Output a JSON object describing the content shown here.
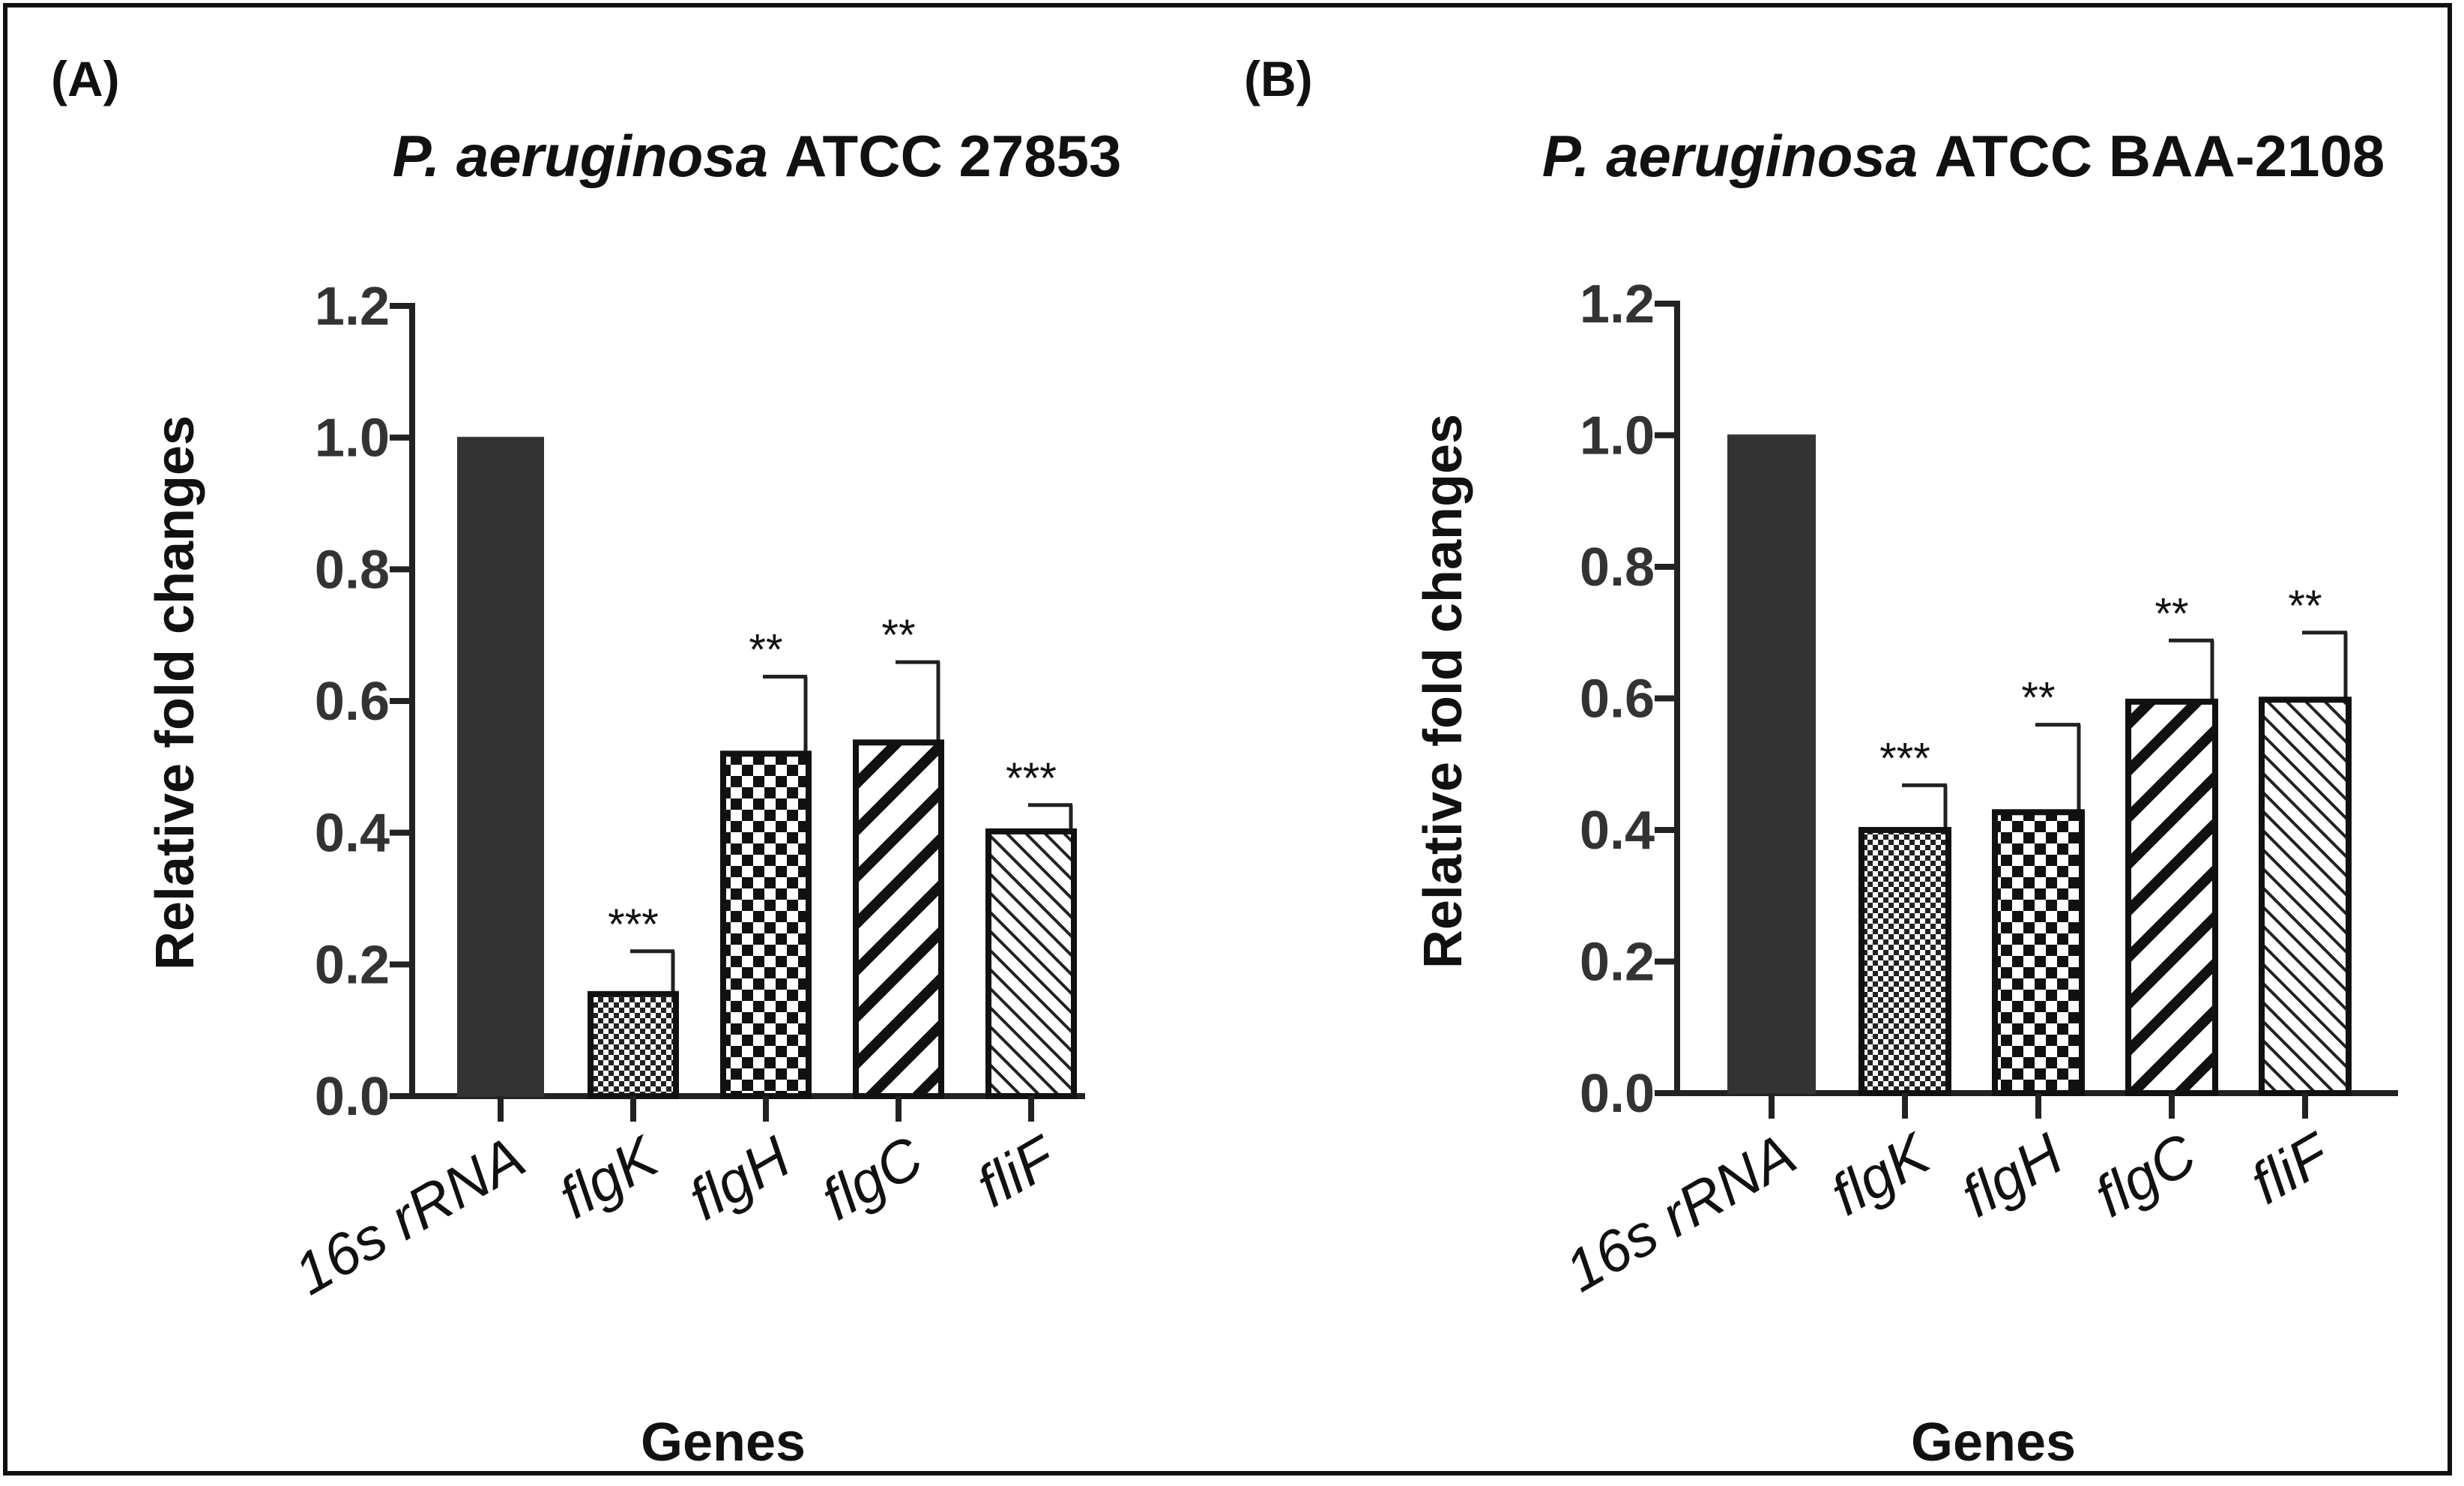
{
  "chart_data": [
    {
      "type": "bar",
      "panel": "(A)",
      "title_italic": "P. aeruginosa",
      "title_rest": "ATCC 27853",
      "xlabel": "Genes",
      "ylabel": "Relative fold changes",
      "ylim": [
        0,
        1.2
      ],
      "yticks": [
        "0.0",
        "0.2",
        "0.4",
        "0.6",
        "0.8",
        "1.0",
        "1.2"
      ],
      "categories": [
        "16s rRNA",
        "flgK",
        "flgH",
        "flgC",
        "fliF"
      ],
      "values": [
        1.0,
        0.155,
        0.52,
        0.537,
        0.402
      ],
      "errors": [
        0,
        0.065,
        0.117,
        0.122,
        0.04
      ],
      "significance": [
        "",
        "***",
        "**",
        "**",
        "***"
      ],
      "patterns": [
        "solid",
        "fine-check",
        "check",
        "wide-diag",
        "fine-diag"
      ]
    },
    {
      "type": "bar",
      "panel": "(B)",
      "title_italic": "P. aeruginosa",
      "title_rest": "ATCC BAA-2108",
      "xlabel": "Genes",
      "ylabel": "Relative fold changes",
      "ylim": [
        0,
        1.2
      ],
      "yticks": [
        "0.0",
        "0.2",
        "0.4",
        "0.6",
        "0.8",
        "1.0",
        "1.2"
      ],
      "categories": [
        "16s rRNA",
        "flgK",
        "flgH",
        "flgC",
        "fliF"
      ],
      "values": [
        1.0,
        0.4,
        0.427,
        0.595,
        0.598
      ],
      "errors": [
        0,
        0.068,
        0.133,
        0.093,
        0.102
      ],
      "significance": [
        "",
        "***",
        "**",
        "**",
        "**"
      ],
      "patterns": [
        "solid",
        "fine-check",
        "check",
        "wide-diag",
        "fine-diag"
      ]
    }
  ]
}
